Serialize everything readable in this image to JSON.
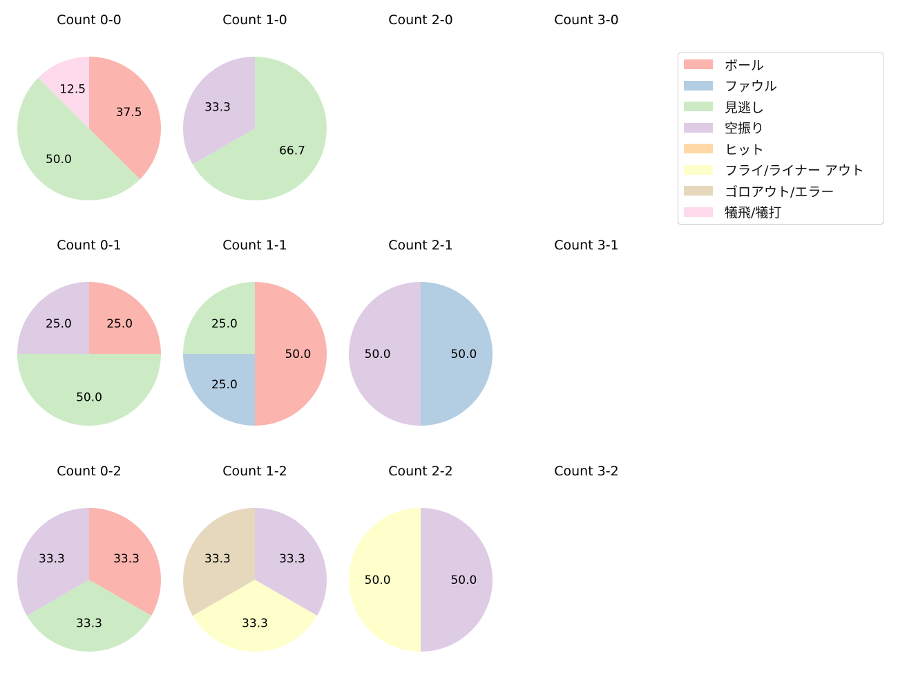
{
  "chart_data": {
    "type": "pie",
    "start_angle": 90,
    "direction": "clockwise",
    "legend": {
      "placement": "top-right",
      "entries": [
        "ボール",
        "ファウル",
        "見逃し",
        "空振り",
        "ヒット",
        "フライ/ライナー アウト",
        "ゴロアウト/エラー",
        "犠飛/犠打"
      ],
      "colors": [
        "#fbb4ae",
        "#b3cde3",
        "#ccebc5",
        "#decbe4",
        "#fed9a6",
        "#ffffcc",
        "#e5d8bd",
        "#fddaec"
      ]
    },
    "charts": [
      {
        "title": "Count 0-0",
        "slices": [
          {
            "category": "ボール",
            "value": 37.5
          },
          {
            "category": "見逃し",
            "value": 50.0
          },
          {
            "category": "犠飛/犠打",
            "value": 12.5
          }
        ]
      },
      {
        "title": "Count 1-0",
        "slices": [
          {
            "category": "見逃し",
            "value": 66.7
          },
          {
            "category": "空振り",
            "value": 33.3
          }
        ]
      },
      {
        "title": "Count 2-0",
        "slices": []
      },
      {
        "title": "Count 3-0",
        "slices": []
      },
      {
        "title": "Count 0-1",
        "slices": [
          {
            "category": "ボール",
            "value": 25.0
          },
          {
            "category": "見逃し",
            "value": 50.0
          },
          {
            "category": "空振り",
            "value": 25.0
          }
        ]
      },
      {
        "title": "Count 1-1",
        "slices": [
          {
            "category": "ボール",
            "value": 50.0
          },
          {
            "category": "ファウル",
            "value": 25.0
          },
          {
            "category": "見逃し",
            "value": 25.0
          }
        ]
      },
      {
        "title": "Count 2-1",
        "slices": [
          {
            "category": "ファウル",
            "value": 50.0
          },
          {
            "category": "空振り",
            "value": 50.0
          }
        ]
      },
      {
        "title": "Count 3-1",
        "slices": []
      },
      {
        "title": "Count 0-2",
        "slices": [
          {
            "category": "ボール",
            "value": 33.3
          },
          {
            "category": "見逃し",
            "value": 33.3
          },
          {
            "category": "空振り",
            "value": 33.3
          }
        ]
      },
      {
        "title": "Count 1-2",
        "slices": [
          {
            "category": "空振り",
            "value": 33.3
          },
          {
            "category": "フライ/ライナー アウト",
            "value": 33.3
          },
          {
            "category": "ゴロアウト/エラー",
            "value": 33.3
          }
        ]
      },
      {
        "title": "Count 2-2",
        "slices": [
          {
            "category": "空振り",
            "value": 50.0
          },
          {
            "category": "フライ/ライナー アウト",
            "value": 50.0
          }
        ]
      },
      {
        "title": "Count 3-2",
        "slices": []
      }
    ]
  }
}
